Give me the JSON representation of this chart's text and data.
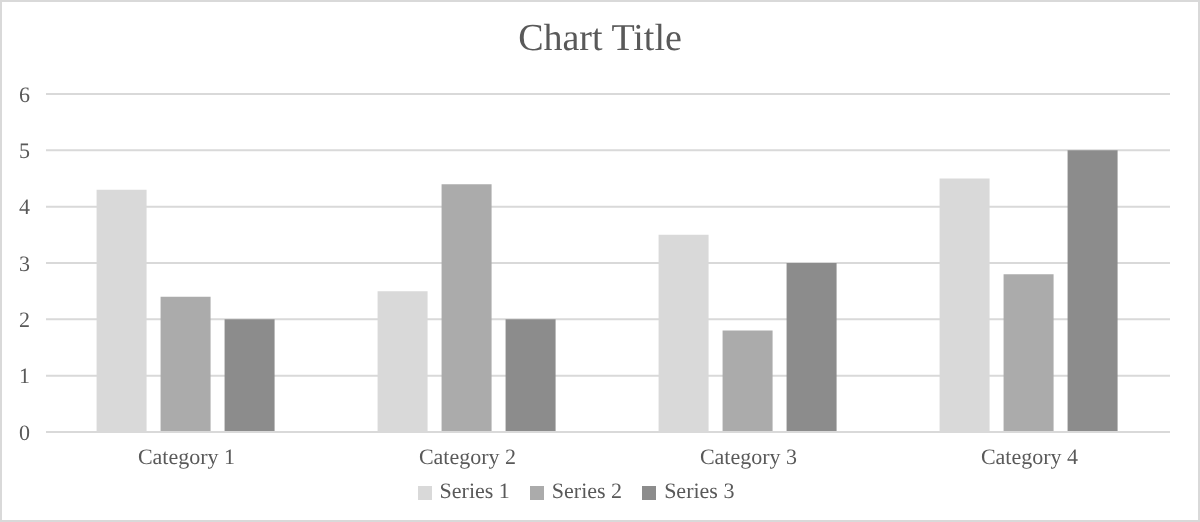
{
  "chart_data": {
    "type": "bar",
    "title": "Chart Title",
    "categories": [
      "Category 1",
      "Category 2",
      "Category 3",
      "Category 4"
    ],
    "series": [
      {
        "name": "Series 1",
        "color": "#d9d9d9",
        "values": [
          4.3,
          2.5,
          3.5,
          4.5
        ]
      },
      {
        "name": "Series 2",
        "color": "#ababab",
        "values": [
          2.4,
          4.4,
          1.8,
          2.8
        ]
      },
      {
        "name": "Series 3",
        "color": "#8c8c8c",
        "values": [
          2,
          2,
          3,
          5
        ]
      }
    ],
    "ylim": [
      0,
      6
    ],
    "yticks": [
      0,
      1,
      2,
      3,
      4,
      5,
      6
    ],
    "grid": "y",
    "legend": "bottom"
  }
}
